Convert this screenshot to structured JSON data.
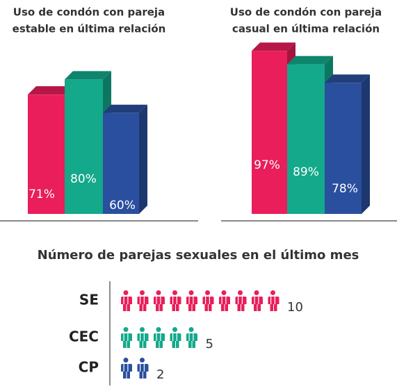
{
  "chart_data": [
    {
      "type": "bar3d",
      "title": [
        "Uso de condón con pareja",
        "estable en última relación"
      ],
      "categories": [
        null,
        null,
        null
      ],
      "values": [
        71,
        80,
        60
      ],
      "value_labels": [
        "71%",
        "80%",
        "60%"
      ],
      "colors": [
        "#e91e5a",
        "#13a98a",
        "#2a4f9e"
      ]
    },
    {
      "type": "bar3d",
      "title": [
        "Uso de condón con pareja",
        "casual en última relación"
      ],
      "categories": [
        null,
        null,
        null
      ],
      "values": [
        97,
        89,
        78
      ],
      "value_labels": [
        "97%",
        "89%",
        "78%"
      ],
      "colors": [
        "#e91e5a",
        "#13a98a",
        "#2a4f9e"
      ]
    },
    {
      "type": "pictograph",
      "title": "Número de parejas sexuales en el último mes",
      "categories": [
        "SE",
        "CEC",
        "CP"
      ],
      "values": [
        10,
        5,
        2
      ],
      "colors": [
        "#e91e5a",
        "#13a98a",
        "#2a4f9e"
      ]
    }
  ]
}
